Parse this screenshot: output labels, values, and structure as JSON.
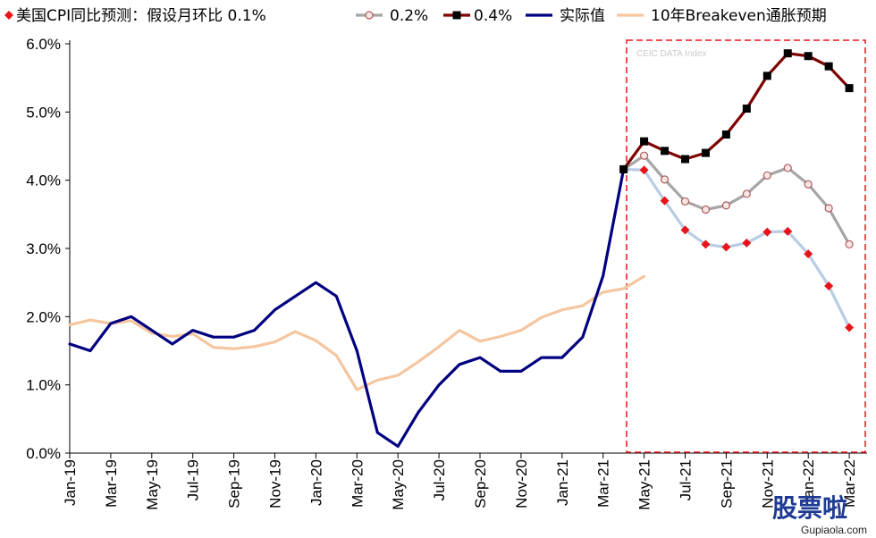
{
  "chart_data": {
    "type": "line",
    "ylim": [
      0,
      6
    ],
    "y_ticks": [
      "0.0%",
      "1.0%",
      "2.0%",
      "3.0%",
      "4.0%",
      "5.0%",
      "6.0%"
    ],
    "x_tick_labels": [
      "Jan-19",
      "Mar-19",
      "May-19",
      "Jul-19",
      "Sep-19",
      "Nov-19",
      "Jan-20",
      "Mar-20",
      "May-20",
      "Jul-20",
      "Sep-20",
      "Nov-20",
      "Jan-21",
      "Mar-21",
      "May-21",
      "Jul-21",
      "Sep-21",
      "Nov-21",
      "Jan-22",
      "Mar-22"
    ],
    "x_tick_months": [
      "2019-01",
      "2019-03",
      "2019-05",
      "2019-07",
      "2019-09",
      "2019-11",
      "2020-01",
      "2020-03",
      "2020-05",
      "2020-07",
      "2020-09",
      "2020-11",
      "2021-01",
      "2021-03",
      "2021-05",
      "2021-07",
      "2021-09",
      "2021-11",
      "2022-01",
      "2022-03"
    ],
    "legend_position": "top",
    "series": [
      {
        "name": "美国CPI同比预测：假设月环比 0.1%",
        "color": "#e8141b",
        "line_color": "#b8cce4",
        "marker": "diamond",
        "x": [
          "2021-04",
          "2021-05",
          "2021-06",
          "2021-07",
          "2021-08",
          "2021-09",
          "2021-10",
          "2021-11",
          "2021-12",
          "2022-01",
          "2022-02",
          "2022-03"
        ],
        "values": [
          4.16,
          4.15,
          3.7,
          3.27,
          3.06,
          3.02,
          3.08,
          3.24,
          3.25,
          2.92,
          2.45,
          1.84
        ]
      },
      {
        "name": "0.2%",
        "color": "#a5a5a5",
        "line_color": "#a5a5a5",
        "marker": "circle",
        "x": [
          "2021-04",
          "2021-05",
          "2021-06",
          "2021-07",
          "2021-08",
          "2021-09",
          "2021-10",
          "2021-11",
          "2021-12",
          "2022-01",
          "2022-02",
          "2022-03"
        ],
        "values": [
          4.16,
          4.36,
          4.01,
          3.69,
          3.57,
          3.63,
          3.8,
          4.07,
          4.18,
          3.94,
          3.59,
          3.06
        ]
      },
      {
        "name": "0.4%",
        "color": "#000000",
        "line_color": "#7f0000",
        "marker": "square",
        "x": [
          "2021-04",
          "2021-05",
          "2021-06",
          "2021-07",
          "2021-08",
          "2021-09",
          "2021-10",
          "2021-11",
          "2021-12",
          "2022-01",
          "2022-02",
          "2022-03"
        ],
        "values": [
          4.16,
          4.57,
          4.43,
          4.31,
          4.4,
          4.67,
          5.05,
          5.53,
          5.86,
          5.82,
          5.67,
          5.35
        ]
      },
      {
        "name": "实际值",
        "color": "#000080",
        "line_color": "#000080",
        "marker": "none",
        "x": [
          "2019-01",
          "2019-02",
          "2019-03",
          "2019-04",
          "2019-05",
          "2019-06",
          "2019-07",
          "2019-08",
          "2019-09",
          "2019-10",
          "2019-11",
          "2019-12",
          "2020-01",
          "2020-02",
          "2020-03",
          "2020-04",
          "2020-05",
          "2020-06",
          "2020-07",
          "2020-08",
          "2020-09",
          "2020-10",
          "2020-11",
          "2020-12",
          "2021-01",
          "2021-02",
          "2021-03",
          "2021-04"
        ],
        "values": [
          1.6,
          1.5,
          1.9,
          2.0,
          1.8,
          1.6,
          1.8,
          1.7,
          1.7,
          1.8,
          2.1,
          2.3,
          2.5,
          2.3,
          1.5,
          0.3,
          0.1,
          0.6,
          1.0,
          1.3,
          1.4,
          1.2,
          1.2,
          1.4,
          1.4,
          1.7,
          2.6,
          4.16
        ]
      },
      {
        "name": "10年Breakeven通胀预期",
        "color": "#f5c6a0",
        "line_color": "#f5c6a0",
        "marker": "none",
        "x": [
          "2019-01",
          "2019-02",
          "2019-03",
          "2019-04",
          "2019-05",
          "2019-06",
          "2019-07",
          "2019-08",
          "2019-09",
          "2019-10",
          "2019-11",
          "2019-12",
          "2020-01",
          "2020-02",
          "2020-03",
          "2020-04",
          "2020-05",
          "2020-06",
          "2020-07",
          "2020-08",
          "2020-09",
          "2020-10",
          "2020-11",
          "2020-12",
          "2021-01",
          "2021-02",
          "2021-03",
          "2021-04",
          "2021-05"
        ],
        "values": [
          1.88,
          1.95,
          1.9,
          1.94,
          1.76,
          1.71,
          1.75,
          1.55,
          1.53,
          1.56,
          1.63,
          1.78,
          1.65,
          1.43,
          0.93,
          1.07,
          1.14,
          1.34,
          1.56,
          1.8,
          1.64,
          1.71,
          1.8,
          1.99,
          2.1,
          2.16,
          2.36,
          2.41,
          2.59
        ]
      }
    ],
    "annotations": {
      "watermark": "CEIC DATA Index",
      "logo": "股票啦",
      "logo_url": "Gupiaola.com"
    }
  }
}
